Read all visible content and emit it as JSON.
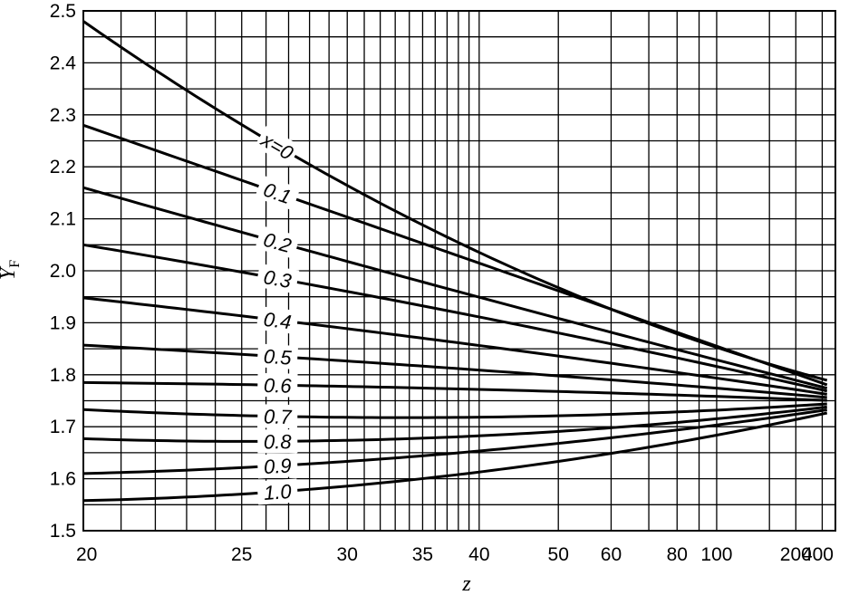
{
  "chart_data": {
    "type": "line",
    "xlabel": "z",
    "ylabel": "Y_F",
    "ylabel_main": "Y",
    "ylabel_sub": "F",
    "x_scale": "reciprocal",
    "ylim": [
      1.5,
      2.5
    ],
    "xlim": [
      20,
      400
    ],
    "grid": true,
    "x_tick_labels": [
      {
        "value": 20,
        "label": "20"
      },
      {
        "value": 25,
        "label": "25"
      },
      {
        "value": 30,
        "label": "30"
      },
      {
        "value": 35,
        "label": "35"
      },
      {
        "value": 40,
        "label": "40"
      },
      {
        "value": 50,
        "label": "50"
      },
      {
        "value": 60,
        "label": "60"
      },
      {
        "value": 80,
        "label": "80"
      },
      {
        "value": 100,
        "label": "100"
      },
      {
        "value": 200,
        "label": "200"
      },
      {
        "value": 400,
        "label": "400"
      }
    ],
    "x_grid_values": [
      20,
      21,
      22,
      23,
      24,
      25,
      26,
      27,
      28,
      29,
      30,
      31,
      32,
      33,
      34,
      35,
      36,
      37,
      38,
      39,
      40,
      50,
      60,
      70,
      80,
      90,
      100,
      150,
      200,
      300,
      400
    ],
    "y_tick_labels": [
      "1.5",
      "1.6",
      "1.7",
      "1.8",
      "1.9",
      "2.0",
      "2.1",
      "2.2",
      "2.3",
      "2.4",
      "2.5"
    ],
    "y_grid_step": 0.05,
    "series": [
      {
        "name": "x=0",
        "label": "x=0",
        "x": [
          20,
          26.5,
          400
        ],
        "y": [
          2.48,
          2.24,
          1.785
        ]
      },
      {
        "name": "0.1",
        "label": "0.1",
        "x": [
          20,
          26.5,
          400
        ],
        "y": [
          2.28,
          2.15,
          1.775
        ]
      },
      {
        "name": "0.2",
        "label": "0.2",
        "x": [
          20,
          26.5,
          400
        ],
        "y": [
          2.16,
          2.055,
          1.77
        ]
      },
      {
        "name": "0.3",
        "label": "0.3",
        "x": [
          20,
          26.5,
          400
        ],
        "y": [
          2.05,
          1.985,
          1.765
        ]
      },
      {
        "name": "0.4",
        "label": "0.4",
        "x": [
          20,
          26.5,
          400
        ],
        "y": [
          1.948,
          1.905,
          1.76
        ]
      },
      {
        "name": "0.5",
        "label": "0.5",
        "x": [
          20,
          26.5,
          400
        ],
        "y": [
          1.857,
          1.835,
          1.755
        ]
      },
      {
        "name": "0.6",
        "label": "0.6",
        "x": [
          20,
          26.5,
          400
        ],
        "y": [
          1.785,
          1.78,
          1.75
        ]
      },
      {
        "name": "0.7",
        "label": "0.7",
        "x": [
          20,
          26.5,
          400
        ],
        "y": [
          1.733,
          1.72,
          1.745
        ]
      },
      {
        "name": "0.8",
        "label": "0.8",
        "x": [
          20,
          26.5,
          400
        ],
        "y": [
          1.677,
          1.672,
          1.74
        ]
      },
      {
        "name": "0.9",
        "label": "0.9",
        "x": [
          20,
          26.5,
          400
        ],
        "y": [
          1.61,
          1.625,
          1.735
        ]
      },
      {
        "name": "1.0",
        "label": "1.0",
        "x": [
          20,
          26.5,
          400
        ],
        "y": [
          1.558,
          1.575,
          1.73
        ]
      }
    ]
  }
}
